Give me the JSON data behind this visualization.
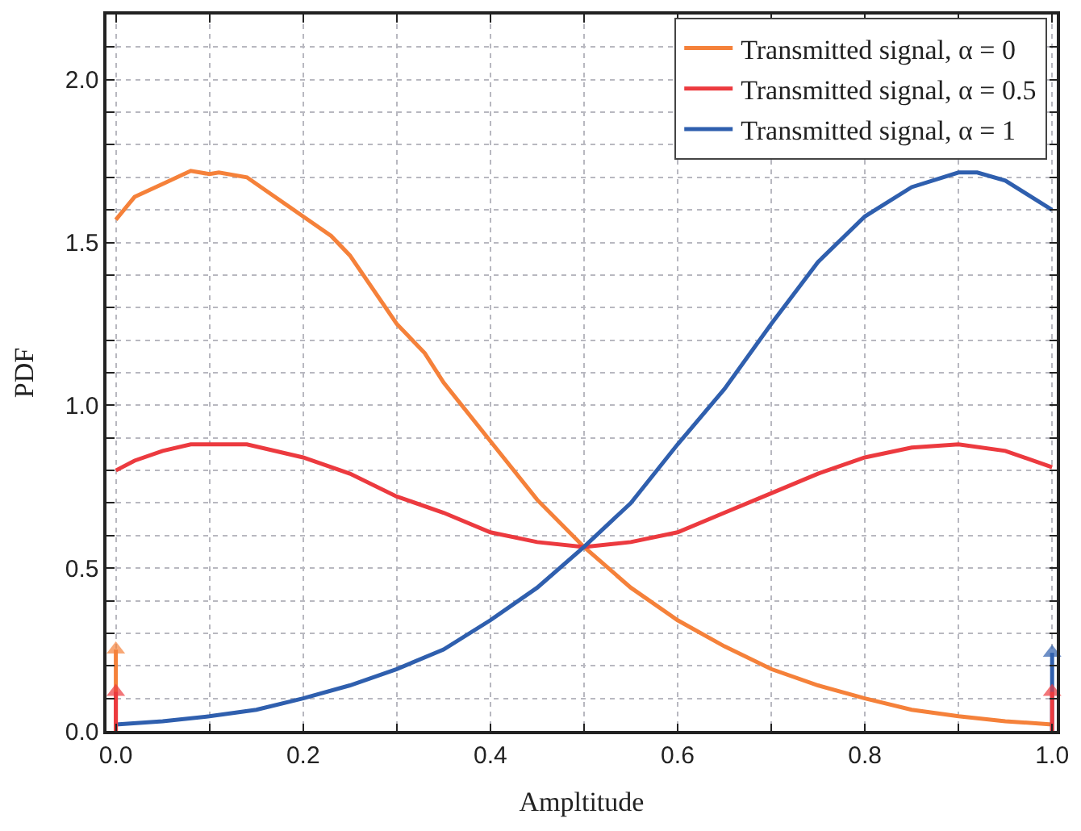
{
  "chart_data": {
    "type": "line",
    "xlabel": "Ampltitude",
    "ylabel": "PDF",
    "xlim": [
      -0.01,
      1.005
    ],
    "ylim": [
      0,
      2.2
    ],
    "xticks": [
      {
        "value": 0,
        "label": "0.0"
      },
      {
        "value": 0.1,
        "label": null
      },
      {
        "value": 0.2,
        "label": "0.2"
      },
      {
        "value": 0.3,
        "label": null
      },
      {
        "value": 0.4,
        "label": "0.4"
      },
      {
        "value": 0.5,
        "label": null
      },
      {
        "value": 0.6,
        "label": "0.6"
      },
      {
        "value": 0.7,
        "label": null
      },
      {
        "value": 0.8,
        "label": "0.8"
      },
      {
        "value": 0.9,
        "label": null
      },
      {
        "value": 1,
        "label": "1.0"
      }
    ],
    "yticks": [
      {
        "value": 0,
        "label": "0.0"
      },
      {
        "value": 0.1,
        "label": null
      },
      {
        "value": 0.2,
        "label": null
      },
      {
        "value": 0.3,
        "label": null
      },
      {
        "value": 0.4,
        "label": null
      },
      {
        "value": 0.5,
        "label": "0.5"
      },
      {
        "value": 0.6,
        "label": null
      },
      {
        "value": 0.7,
        "label": null
      },
      {
        "value": 0.8,
        "label": null
      },
      {
        "value": 0.9,
        "label": null
      },
      {
        "value": 1,
        "label": "1.0"
      },
      {
        "value": 1.1,
        "label": null
      },
      {
        "value": 1.2,
        "label": null
      },
      {
        "value": 1.3,
        "label": null
      },
      {
        "value": 1.4,
        "label": null
      },
      {
        "value": 1.5,
        "label": "1.5"
      },
      {
        "value": 1.6,
        "label": null
      },
      {
        "value": 1.7,
        "label": null
      },
      {
        "value": 1.8,
        "label": null
      },
      {
        "value": 1.9,
        "label": null
      },
      {
        "value": 2,
        "label": "2.0"
      },
      {
        "value": 2.1,
        "label": null
      },
      {
        "value": 2.2,
        "label": null
      }
    ],
    "grid": true,
    "legend": "top right",
    "marker": "none",
    "line_style": "solid",
    "series": [
      {
        "name": "Transmitted signal, α = 0",
        "color": "#f5813a",
        "x": [
          0,
          0.02,
          0.05,
          0.08,
          0.1,
          0.11,
          0.14,
          0.16,
          0.2,
          0.23,
          0.25,
          0.3,
          0.33,
          0.35,
          0.4,
          0.45,
          0.5,
          0.55,
          0.6,
          0.65,
          0.7,
          0.75,
          0.8,
          0.85,
          0.9,
          0.95,
          1.0
        ],
        "values": [
          1.57,
          1.64,
          1.68,
          1.72,
          1.71,
          1.715,
          1.7,
          1.66,
          1.58,
          1.52,
          1.46,
          1.25,
          1.16,
          1.07,
          0.89,
          0.71,
          0.565,
          0.44,
          0.34,
          0.26,
          0.19,
          0.14,
          0.1,
          0.065,
          0.045,
          0.03,
          0.02
        ]
      },
      {
        "name": "Transmitted signal, α = 0.5",
        "color": "#ec3a3f",
        "x": [
          0,
          0.02,
          0.05,
          0.08,
          0.1,
          0.14,
          0.2,
          0.25,
          0.3,
          0.35,
          0.4,
          0.45,
          0.5,
          0.55,
          0.6,
          0.65,
          0.7,
          0.75,
          0.8,
          0.85,
          0.9,
          0.95,
          1.0
        ],
        "values": [
          0.8,
          0.83,
          0.86,
          0.88,
          0.88,
          0.88,
          0.84,
          0.79,
          0.72,
          0.67,
          0.61,
          0.58,
          0.565,
          0.58,
          0.61,
          0.67,
          0.73,
          0.79,
          0.84,
          0.87,
          0.88,
          0.86,
          0.81
        ]
      },
      {
        "name": "Transmitted signal, α = 1",
        "color": "#2f5fae",
        "x": [
          0,
          0.05,
          0.1,
          0.15,
          0.2,
          0.25,
          0.3,
          0.35,
          0.4,
          0.45,
          0.5,
          0.55,
          0.6,
          0.65,
          0.7,
          0.75,
          0.8,
          0.85,
          0.9,
          0.92,
          0.95,
          1.0
        ],
        "values": [
          0.02,
          0.03,
          0.045,
          0.065,
          0.1,
          0.14,
          0.19,
          0.25,
          0.34,
          0.44,
          0.565,
          0.7,
          0.88,
          1.05,
          1.25,
          1.44,
          1.58,
          1.67,
          1.715,
          1.715,
          1.69,
          1.6
        ]
      },
      {
        "color": "#f5813a",
        "x": [
          0,
          0
        ],
        "values": [
          0,
          0.25
        ],
        "marker": "triangle"
      },
      {
        "color": "#ec3a3f",
        "x": [
          0,
          0
        ],
        "values": [
          0,
          0.12
        ],
        "marker": "triangle"
      },
      {
        "color": "#2f5fae",
        "x": [
          1,
          1
        ],
        "values": [
          0,
          0.24
        ],
        "marker": "triangle"
      },
      {
        "color": "#ec3a3f",
        "x": [
          1,
          1
        ],
        "values": [
          0,
          0.12
        ],
        "marker": "triangle"
      }
    ]
  }
}
